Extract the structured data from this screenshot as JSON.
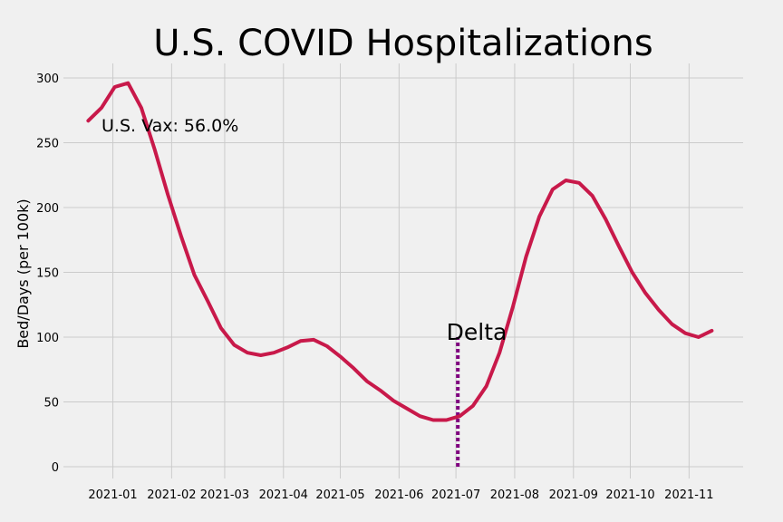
{
  "chart_data": {
    "type": "line",
    "title": "U.S. COVID Hospitalizations",
    "xlabel": "",
    "ylabel": "Bed/Days (per 100k)",
    "ylim": [
      0,
      300
    ],
    "yticks": [
      0,
      50,
      100,
      150,
      200,
      250,
      300
    ],
    "xticks": [
      "2021-01",
      "2021-02",
      "2021-03",
      "2021-04",
      "2021-05",
      "2021-06",
      "2021-07",
      "2021-08",
      "2021-09",
      "2021-10",
      "2021-11"
    ],
    "xlim": [
      "2020-12-15",
      "2021-11-30"
    ],
    "grid": true,
    "line_color": "#c8194a",
    "series": [
      {
        "x": [
          "2020-12-19",
          "2020-12-26",
          "2021-01-02",
          "2021-01-09",
          "2021-01-16",
          "2021-01-23",
          "2021-01-30",
          "2021-02-06",
          "2021-02-13",
          "2021-02-20",
          "2021-02-27",
          "2021-03-06",
          "2021-03-13",
          "2021-03-20",
          "2021-03-27",
          "2021-04-03",
          "2021-04-10",
          "2021-04-17",
          "2021-04-24",
          "2021-05-01",
          "2021-05-08",
          "2021-05-15",
          "2021-05-22",
          "2021-05-29",
          "2021-06-05",
          "2021-06-12",
          "2021-06-19",
          "2021-06-26",
          "2021-07-03",
          "2021-07-10",
          "2021-07-17",
          "2021-07-24",
          "2021-07-31",
          "2021-08-07",
          "2021-08-14",
          "2021-08-21",
          "2021-08-28",
          "2021-09-04",
          "2021-09-11",
          "2021-09-18",
          "2021-09-25",
          "2021-10-02",
          "2021-10-09",
          "2021-10-16",
          "2021-10-23",
          "2021-10-30",
          "2021-11-06",
          "2021-11-13"
        ],
        "values": [
          267,
          277,
          293,
          296,
          277,
          245,
          210,
          178,
          148,
          128,
          107,
          94,
          88,
          86,
          88,
          92,
          97,
          98,
          93,
          85,
          76,
          66,
          59,
          51,
          45,
          39,
          36,
          36,
          39,
          47,
          62,
          88,
          123,
          162,
          193,
          214,
          221,
          219,
          209,
          191,
          170,
          150,
          134,
          121,
          110,
          103,
          100,
          105
        ]
      }
    ],
    "annotations": [
      {
        "text": "U.S. Vax: 56.0%",
        "x": "2020-12-26",
        "y": 263
      },
      {
        "text": "Delta",
        "x": "2021-06-26",
        "y": 102
      }
    ],
    "vline": {
      "x": "2021-07-02",
      "ymin": 0,
      "ymax": 100,
      "color": "#800080",
      "style": "dotted"
    }
  }
}
